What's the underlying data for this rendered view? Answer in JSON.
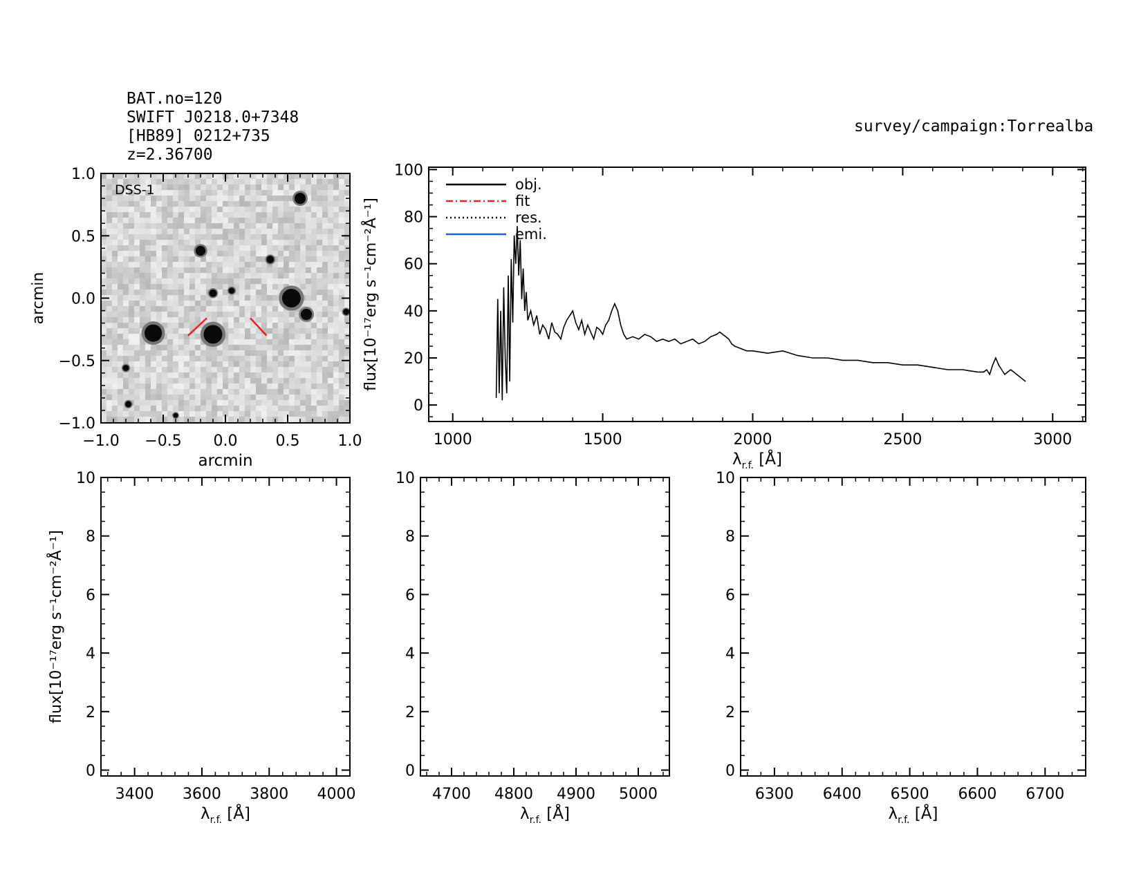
{
  "header": {
    "bat_no": "BAT.no=120",
    "swift_name": "SWIFT J0218.0+7348",
    "counterpart": "[HB89] 0212+735",
    "redshift": "z=2.36700",
    "survey": "survey/campaign:Torrealba"
  },
  "chart_data": [
    {
      "type": "image",
      "panel": "dss-image",
      "label": "DSS-1",
      "xlabel": "arcmin",
      "ylabel": "arcmin",
      "xlim": [
        -1.0,
        1.0
      ],
      "ylim": [
        -1.0,
        1.0
      ],
      "xticks": [
        "−1.0",
        "−0.5",
        "0.0",
        "0.5",
        "1.0"
      ],
      "yticks": [
        "−1.0",
        "−0.5",
        "0.0",
        "0.5",
        "1.0"
      ],
      "xtick_values": [
        -1.0,
        -0.5,
        0.0,
        0.5,
        1.0
      ],
      "ytick_values": [
        -1.0,
        -0.5,
        0.0,
        0.5,
        1.0
      ],
      "sources": [
        {
          "x": 0.6,
          "y": 0.8,
          "r": 0.045
        },
        {
          "x": -0.2,
          "y": 0.38,
          "r": 0.04
        },
        {
          "x": 0.36,
          "y": 0.31,
          "r": 0.03
        },
        {
          "x": -0.1,
          "y": 0.04,
          "r": 0.03
        },
        {
          "x": 0.05,
          "y": 0.06,
          "r": 0.025
        },
        {
          "x": 0.53,
          "y": 0.0,
          "r": 0.075
        },
        {
          "x": 0.65,
          "y": -0.13,
          "r": 0.045
        },
        {
          "x": -0.58,
          "y": -0.28,
          "r": 0.07
        },
        {
          "x": -0.1,
          "y": -0.29,
          "r": 0.075
        },
        {
          "x": 0.97,
          "y": -0.11,
          "r": 0.025
        },
        {
          "x": -0.8,
          "y": -0.56,
          "r": 0.025
        },
        {
          "x": -0.78,
          "y": -0.85,
          "r": 0.025
        },
        {
          "x": -0.4,
          "y": -0.94,
          "r": 0.02
        }
      ],
      "markers": [
        {
          "x1": -0.3,
          "y1": -0.3,
          "x2": -0.15,
          "y2": -0.16
        },
        {
          "x1": 0.2,
          "y1": -0.16,
          "x2": 0.33,
          "y2": -0.3
        }
      ]
    },
    {
      "type": "line",
      "panel": "main-spectrum",
      "xlabel": "λ",
      "xlabel_sub": "r.f.",
      "xlabel_unit": "[Å]",
      "ylabel": "flux[10⁻¹⁷erg s⁻¹cm⁻²Å⁻¹]",
      "xlim": [
        920,
        3110
      ],
      "ylim": [
        -7,
        101
      ],
      "xticks": [
        1000,
        1500,
        2000,
        2500,
        3000
      ],
      "yticks": [
        0,
        20,
        40,
        60,
        80,
        100
      ],
      "legend": [
        "obj.",
        "fit",
        "res.",
        "emi."
      ],
      "legend_colors": [
        "#000000",
        "#e8231b",
        "#000000",
        "#1a5fd6"
      ],
      "legend_position": "top-left",
      "series": [
        {
          "name": "obj.",
          "x": [
            1145,
            1150,
            1155,
            1160,
            1165,
            1170,
            1175,
            1180,
            1185,
            1190,
            1195,
            1200,
            1205,
            1210,
            1215,
            1220,
            1225,
            1230,
            1235,
            1240,
            1245,
            1250,
            1260,
            1270,
            1280,
            1290,
            1300,
            1310,
            1320,
            1330,
            1340,
            1350,
            1360,
            1370,
            1380,
            1390,
            1400,
            1410,
            1420,
            1430,
            1440,
            1450,
            1460,
            1470,
            1480,
            1490,
            1500,
            1510,
            1520,
            1530,
            1540,
            1550,
            1560,
            1570,
            1580,
            1600,
            1620,
            1640,
            1660,
            1680,
            1700,
            1720,
            1740,
            1760,
            1780,
            1800,
            1820,
            1840,
            1860,
            1880,
            1890,
            1900,
            1910,
            1920,
            1930,
            1940,
            1960,
            1980,
            2000,
            2050,
            2100,
            2150,
            2200,
            2250,
            2300,
            2350,
            2400,
            2450,
            2500,
            2550,
            2600,
            2650,
            2700,
            2750,
            2770,
            2780,
            2790,
            2800,
            2810,
            2820,
            2830,
            2840,
            2850,
            2860,
            2870,
            2880,
            2890,
            2900,
            2910
          ],
          "y": [
            3,
            45,
            5,
            40,
            2,
            50,
            20,
            5,
            55,
            10,
            62,
            35,
            72,
            60,
            76,
            55,
            70,
            45,
            58,
            40,
            48,
            36,
            40,
            34,
            38,
            30,
            34,
            32,
            28,
            35,
            31,
            30,
            28,
            33,
            36,
            38,
            40,
            35,
            32,
            36,
            30,
            34,
            31,
            28,
            33,
            32,
            30,
            34,
            36,
            40,
            43,
            40,
            34,
            30,
            28,
            29,
            28,
            30,
            29,
            27,
            28,
            27,
            28,
            26,
            27,
            28,
            26,
            27,
            29,
            30,
            31,
            30,
            29,
            28,
            26,
            25,
            24,
            23,
            23,
            22,
            23,
            21,
            20,
            20,
            19,
            19,
            18,
            18,
            17,
            17,
            16,
            15,
            15,
            14,
            14,
            15,
            13,
            17,
            20,
            17,
            15,
            13,
            14,
            15,
            14,
            13,
            12,
            11,
            10
          ]
        }
      ]
    },
    {
      "type": "line",
      "panel": "zoom-1",
      "xlabel": "λ",
      "xlabel_sub": "r.f.",
      "xlabel_unit": "[Å]",
      "ylabel": "flux[10⁻¹⁷erg s⁻¹cm⁻²Å⁻¹]",
      "xlim": [
        3300,
        4040
      ],
      "ylim": [
        -0.2,
        10
      ],
      "xticks": [
        3400,
        3600,
        3800,
        4000
      ],
      "yticks": [
        0,
        2,
        4,
        6,
        8,
        10
      ],
      "series": []
    },
    {
      "type": "line",
      "panel": "zoom-2",
      "xlabel": "λ",
      "xlabel_sub": "r.f.",
      "xlabel_unit": "[Å]",
      "xlim": [
        4650,
        5050
      ],
      "ylim": [
        -0.2,
        10
      ],
      "xticks": [
        4700,
        4800,
        4900,
        5000
      ],
      "yticks": [
        0,
        2,
        4,
        6,
        8,
        10
      ],
      "series": []
    },
    {
      "type": "line",
      "panel": "zoom-3",
      "xlabel": "λ",
      "xlabel_sub": "r.f.",
      "xlabel_unit": "[Å]",
      "xlim": [
        6250,
        6760
      ],
      "ylim": [
        -0.2,
        10
      ],
      "xticks": [
        6300,
        6400,
        6500,
        6600,
        6700
      ],
      "yticks": [
        0,
        2,
        4,
        6,
        8,
        10
      ],
      "series": []
    }
  ]
}
